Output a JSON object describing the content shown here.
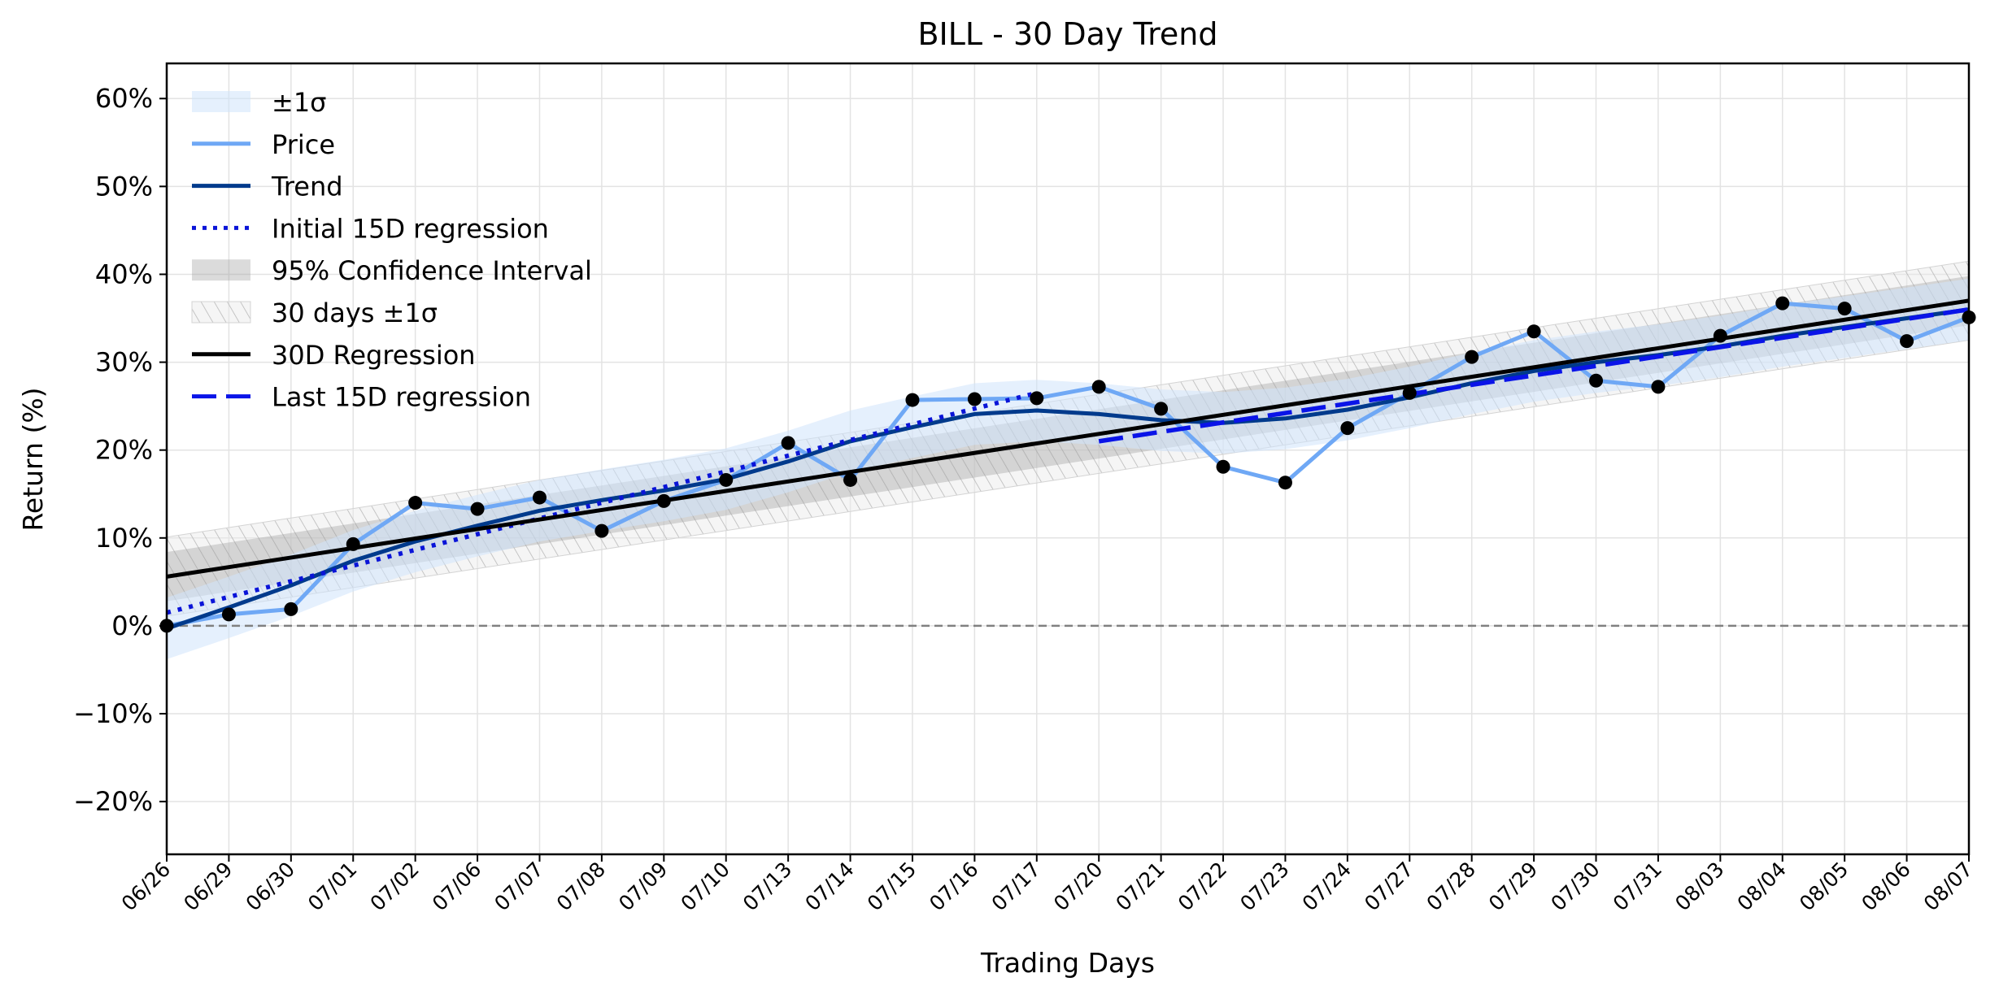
{
  "chart_data": {
    "type": "line",
    "title": "BILL - 30 Day Trend",
    "xlabel": "Trading Days",
    "ylabel": "Return (%)",
    "ylim": [
      -26,
      64
    ],
    "yticks": [
      -20,
      -10,
      0,
      10,
      20,
      30,
      40,
      50,
      60
    ],
    "ytick_labels": [
      "−20%",
      "−10%",
      "0%",
      "10%",
      "20%",
      "30%",
      "40%",
      "50%",
      "60%"
    ],
    "grid": true,
    "zero_line": 0,
    "categories": [
      "06/26",
      "06/29",
      "06/30",
      "07/01",
      "07/02",
      "07/06",
      "07/07",
      "07/08",
      "07/09",
      "07/10",
      "07/13",
      "07/14",
      "07/15",
      "07/16",
      "07/17",
      "07/20",
      "07/21",
      "07/22",
      "07/23",
      "07/24",
      "07/27",
      "07/28",
      "07/29",
      "07/30",
      "07/31",
      "08/03",
      "08/04",
      "08/05",
      "08/06",
      "08/07"
    ],
    "series": [
      {
        "name": "Price",
        "color": "#6fa8f5",
        "values": [
          0.0,
          1.3,
          1.9,
          9.3,
          14.0,
          13.3,
          14.6,
          10.8,
          14.2,
          16.6,
          20.8,
          16.6,
          25.7,
          25.8,
          25.9,
          27.2,
          24.7,
          18.1,
          16.3,
          22.5,
          26.5,
          30.6,
          33.5,
          27.9,
          27.2,
          33.0,
          36.7,
          36.1,
          32.4,
          35.1
        ]
      },
      {
        "name": "Trend",
        "color": "#003a8c",
        "values": [
          -0.3,
          2.1,
          4.6,
          7.4,
          9.6,
          11.4,
          13.1,
          14.3,
          15.4,
          16.7,
          18.7,
          21.0,
          22.6,
          24.1,
          24.5,
          24.1,
          23.4,
          23.1,
          23.6,
          24.6,
          26.0,
          27.6,
          29.0,
          30.0,
          30.8,
          31.8,
          33.0,
          34.0,
          35.0,
          36.0
        ]
      },
      {
        "name": "Initial 15D regression",
        "color": "#0a14d8",
        "style": "dotted",
        "x_range": [
          0,
          14
        ],
        "y_range": [
          1.5,
          26.5
        ]
      },
      {
        "name": "30D Regression",
        "color": "#000000",
        "x_range": [
          0,
          29
        ],
        "y_range": [
          5.6,
          37.0
        ]
      },
      {
        "name": "Last 15D regression",
        "color": "#0a14e8",
        "style": "dashed",
        "x_range": [
          15,
          29
        ],
        "y_range": [
          21.0,
          36.0
        ]
      }
    ],
    "bands": [
      {
        "name": "±1σ",
        "color": "#cfe3fb",
        "around": "Trend",
        "width": 3.5
      },
      {
        "name": "95% Confidence Interval",
        "color": "#999999",
        "around": "30D Regression",
        "width": 2.8
      },
      {
        "name": "30 days ±1σ",
        "color": "#bbbbbb",
        "hatch": true,
        "around": "30D Regression",
        "width": 4.5
      }
    ],
    "markers": {
      "color": "#000000",
      "on": "Price"
    },
    "legend": {
      "position": "top-left",
      "entries": [
        "±1σ",
        "Price",
        "Trend",
        "Initial 15D regression",
        "95% Confidence Interval",
        "30 days ±1σ",
        "30D Regression",
        "Last 15D regression"
      ]
    }
  }
}
